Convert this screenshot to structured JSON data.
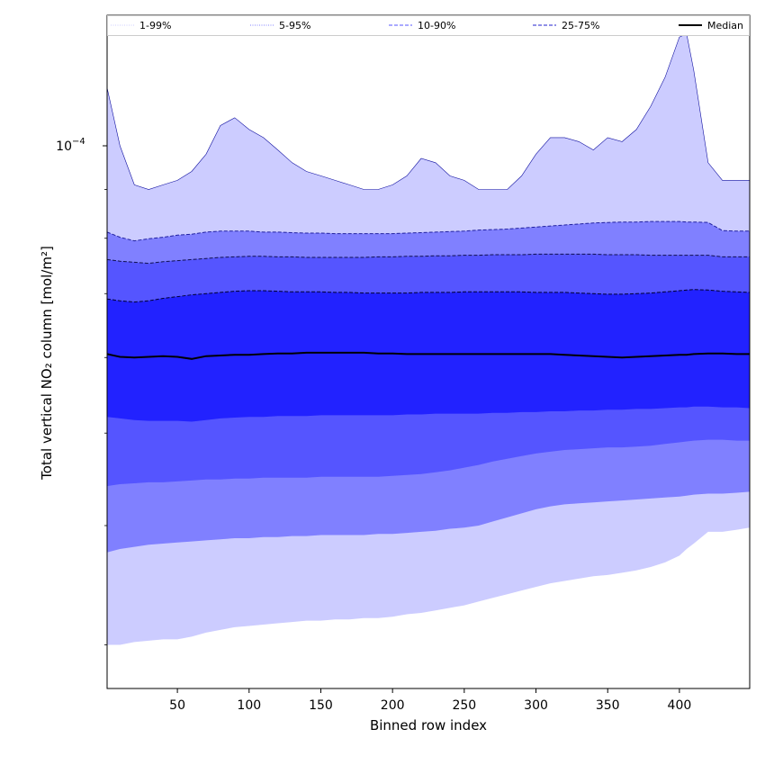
{
  "chart_data": {
    "type": "area",
    "xlabel": "Binned row index",
    "ylabel": "Total vertical NO₂ column [mol/m²]",
    "yscale": "log",
    "xlim": [
      1,
      449
    ],
    "ylim": [
      2.7e-05,
      0.000137
    ],
    "xticks": [
      50,
      100,
      150,
      200,
      250,
      300,
      350,
      400
    ],
    "xtick_labels": [
      "50",
      "100",
      "150",
      "200",
      "250",
      "300",
      "350",
      "400"
    ],
    "yticks_major": [
      0.0001
    ],
    "ytick_major_labels": [
      "10",
      "−4"
    ],
    "yticks_minor": [
      3e-05,
      4e-05,
      5e-05,
      6e-05,
      7e-05,
      8e-05,
      9e-05
    ],
    "grid": false,
    "legend_position": "top",
    "legend": [
      {
        "label": "1-99%",
        "color": "#ccccff",
        "style": "dotted"
      },
      {
        "label": "5-95%",
        "color": "#8080ff",
        "style": "dotted"
      },
      {
        "label": "10-90%",
        "color": "#5555ff",
        "style": "dashed"
      },
      {
        "label": "25-75%",
        "color": "#2222cc",
        "style": "dashed"
      },
      {
        "label": "Median",
        "color": "#000000",
        "style": "solid"
      }
    ],
    "x": [
      1,
      10,
      20,
      30,
      40,
      50,
      60,
      70,
      80,
      90,
      100,
      110,
      120,
      130,
      140,
      150,
      160,
      170,
      180,
      190,
      200,
      210,
      220,
      230,
      240,
      250,
      260,
      270,
      280,
      290,
      300,
      310,
      320,
      330,
      340,
      350,
      360,
      370,
      380,
      390,
      400,
      405,
      410,
      420,
      430,
      440,
      449
    ],
    "series": [
      {
        "name": "1-99%",
        "color": "#ccccff",
        "upper": [
          0.000115,
          0.0001,
          9.1e-05,
          9e-05,
          9.1e-05,
          9.2e-05,
          9.4e-05,
          9.8e-05,
          0.000105,
          0.000107,
          0.000104,
          0.000102,
          9.9e-05,
          9.6e-05,
          9.4e-05,
          9.3e-05,
          9.2e-05,
          9.1e-05,
          9e-05,
          9e-05,
          9.1e-05,
          9.3e-05,
          9.7e-05,
          9.6e-05,
          9.3e-05,
          9.2e-05,
          9e-05,
          9e-05,
          9e-05,
          9.3e-05,
          9.8e-05,
          0.000102,
          0.000102,
          0.000101,
          9.9e-05,
          0.000102,
          0.000101,
          0.000104,
          0.00011,
          0.000118,
          0.00013,
          0.000131,
          0.00012,
          9.6e-05,
          9.2e-05,
          9.2e-05,
          9.2e-05
        ],
        "lower": [
          3e-05,
          3e-05,
          3.02e-05,
          3.03e-05,
          3.04e-05,
          3.04e-05,
          3.06e-05,
          3.09e-05,
          3.11e-05,
          3.13e-05,
          3.14e-05,
          3.15e-05,
          3.16e-05,
          3.17e-05,
          3.18e-05,
          3.18e-05,
          3.19e-05,
          3.19e-05,
          3.2e-05,
          3.2e-05,
          3.21e-05,
          3.23e-05,
          3.24e-05,
          3.26e-05,
          3.28e-05,
          3.3e-05,
          3.33e-05,
          3.36e-05,
          3.39e-05,
          3.42e-05,
          3.45e-05,
          3.48e-05,
          3.5e-05,
          3.52e-05,
          3.54e-05,
          3.55e-05,
          3.57e-05,
          3.59e-05,
          3.62e-05,
          3.66e-05,
          3.72e-05,
          3.78e-05,
          3.83e-05,
          3.94e-05,
          3.94e-05,
          3.96e-05,
          3.98e-05
        ]
      },
      {
        "name": "5-95%",
        "color": "#8080ff",
        "upper": [
          8.12e-05,
          8.02e-05,
          7.95e-05,
          7.99e-05,
          8.02e-05,
          8.06e-05,
          8.08e-05,
          8.12e-05,
          8.14e-05,
          8.14e-05,
          8.14e-05,
          8.12e-05,
          8.12e-05,
          8.11e-05,
          8.1e-05,
          8.1e-05,
          8.09e-05,
          8.09e-05,
          8.09e-05,
          8.09e-05,
          8.09e-05,
          8.1e-05,
          8.11e-05,
          8.12e-05,
          8.13e-05,
          8.14e-05,
          8.16e-05,
          8.17e-05,
          8.18e-05,
          8.2e-05,
          8.22e-05,
          8.24e-05,
          8.26e-05,
          8.28e-05,
          8.3e-05,
          8.31e-05,
          8.32e-05,
          8.32e-05,
          8.33e-05,
          8.33e-05,
          8.33e-05,
          8.32e-05,
          8.32e-05,
          8.31e-05,
          8.15e-05,
          8.14e-05,
          8.14e-05
        ],
        "lower": [
          3.75e-05,
          3.78e-05,
          3.8e-05,
          3.82e-05,
          3.83e-05,
          3.84e-05,
          3.85e-05,
          3.86e-05,
          3.87e-05,
          3.88e-05,
          3.88e-05,
          3.89e-05,
          3.89e-05,
          3.9e-05,
          3.9e-05,
          3.91e-05,
          3.91e-05,
          3.91e-05,
          3.91e-05,
          3.92e-05,
          3.92e-05,
          3.93e-05,
          3.94e-05,
          3.95e-05,
          3.97e-05,
          3.98e-05,
          4e-05,
          4.04e-05,
          4.08e-05,
          4.12e-05,
          4.16e-05,
          4.19e-05,
          4.21e-05,
          4.22e-05,
          4.23e-05,
          4.24e-05,
          4.25e-05,
          4.26e-05,
          4.27e-05,
          4.28e-05,
          4.29e-05,
          4.3e-05,
          4.31e-05,
          4.32e-05,
          4.32e-05,
          4.33e-05,
          4.34e-05
        ]
      },
      {
        "name": "10-90%",
        "color": "#5555ff",
        "upper": [
          7.6e-05,
          7.57e-05,
          7.55e-05,
          7.53e-05,
          7.56e-05,
          7.58e-05,
          7.6e-05,
          7.62e-05,
          7.64e-05,
          7.65e-05,
          7.66e-05,
          7.66e-05,
          7.65e-05,
          7.65e-05,
          7.64e-05,
          7.64e-05,
          7.64e-05,
          7.64e-05,
          7.64e-05,
          7.65e-05,
          7.65e-05,
          7.66e-05,
          7.66e-05,
          7.67e-05,
          7.67e-05,
          7.68e-05,
          7.68e-05,
          7.69e-05,
          7.69e-05,
          7.69e-05,
          7.7e-05,
          7.7e-05,
          7.7e-05,
          7.7e-05,
          7.7e-05,
          7.69e-05,
          7.69e-05,
          7.69e-05,
          7.68e-05,
          7.68e-05,
          7.68e-05,
          7.68e-05,
          7.68e-05,
          7.68e-05,
          7.65e-05,
          7.65e-05,
          7.65e-05
        ],
        "lower": [
          4.4e-05,
          4.42e-05,
          4.43e-05,
          4.44e-05,
          4.44e-05,
          4.45e-05,
          4.46e-05,
          4.47e-05,
          4.47e-05,
          4.48e-05,
          4.48e-05,
          4.49e-05,
          4.49e-05,
          4.49e-05,
          4.49e-05,
          4.5e-05,
          4.5e-05,
          4.5e-05,
          4.5e-05,
          4.5e-05,
          4.51e-05,
          4.52e-05,
          4.53e-05,
          4.55e-05,
          4.57e-05,
          4.6e-05,
          4.63e-05,
          4.67e-05,
          4.7e-05,
          4.73e-05,
          4.76e-05,
          4.78e-05,
          4.8e-05,
          4.81e-05,
          4.82e-05,
          4.83e-05,
          4.83e-05,
          4.84e-05,
          4.85e-05,
          4.87e-05,
          4.89e-05,
          4.9e-05,
          4.91e-05,
          4.92e-05,
          4.92e-05,
          4.91e-05,
          4.91e-05
        ]
      },
      {
        "name": "25-75%",
        "color": "#2222ff",
        "upper": [
          6.91e-05,
          6.88e-05,
          6.86e-05,
          6.88e-05,
          6.92e-05,
          6.95e-05,
          6.98e-05,
          7e-05,
          7.02e-05,
          7.04e-05,
          7.05e-05,
          7.05e-05,
          7.04e-05,
          7.03e-05,
          7.03e-05,
          7.03e-05,
          7.02e-05,
          7.02e-05,
          7.01e-05,
          7.01e-05,
          7.01e-05,
          7.01e-05,
          7.02e-05,
          7.02e-05,
          7.02e-05,
          7.03e-05,
          7.03e-05,
          7.03e-05,
          7.03e-05,
          7.03e-05,
          7.02e-05,
          7.02e-05,
          7.02e-05,
          7.01e-05,
          7e-05,
          6.99e-05,
          6.99e-05,
          7e-05,
          7.01e-05,
          7.03e-05,
          7.05e-05,
          7.06e-05,
          7.07e-05,
          7.06e-05,
          7.04e-05,
          7.03e-05,
          7.02e-05
        ],
        "lower": [
          5.2e-05,
          5.18e-05,
          5.16e-05,
          5.15e-05,
          5.15e-05,
          5.15e-05,
          5.14e-05,
          5.16e-05,
          5.18e-05,
          5.19e-05,
          5.2e-05,
          5.2e-05,
          5.21e-05,
          5.21e-05,
          5.21e-05,
          5.22e-05,
          5.22e-05,
          5.22e-05,
          5.22e-05,
          5.22e-05,
          5.22e-05,
          5.23e-05,
          5.23e-05,
          5.24e-05,
          5.24e-05,
          5.24e-05,
          5.24e-05,
          5.25e-05,
          5.25e-05,
          5.26e-05,
          5.26e-05,
          5.27e-05,
          5.27e-05,
          5.28e-05,
          5.28e-05,
          5.29e-05,
          5.29e-05,
          5.3e-05,
          5.3e-05,
          5.31e-05,
          5.32e-05,
          5.32e-05,
          5.33e-05,
          5.33e-05,
          5.32e-05,
          5.32e-05,
          5.31e-05
        ]
      },
      {
        "name": "Median",
        "color": "#000000",
        "values": [
          6.05e-05,
          6.01e-05,
          6e-05,
          6.01e-05,
          6.02e-05,
          6.01e-05,
          5.98e-05,
          6.02e-05,
          6.03e-05,
          6.04e-05,
          6.04e-05,
          6.05e-05,
          6.06e-05,
          6.06e-05,
          6.07e-05,
          6.07e-05,
          6.07e-05,
          6.07e-05,
          6.07e-05,
          6.06e-05,
          6.06e-05,
          6.05e-05,
          6.05e-05,
          6.05e-05,
          6.05e-05,
          6.05e-05,
          6.05e-05,
          6.05e-05,
          6.05e-05,
          6.05e-05,
          6.05e-05,
          6.05e-05,
          6.04e-05,
          6.03e-05,
          6.02e-05,
          6.01e-05,
          6e-05,
          6.01e-05,
          6.02e-05,
          6.03e-05,
          6.04e-05,
          6.04e-05,
          6.05e-05,
          6.06e-05,
          6.06e-05,
          6.05e-05,
          6.05e-05
        ]
      }
    ]
  }
}
